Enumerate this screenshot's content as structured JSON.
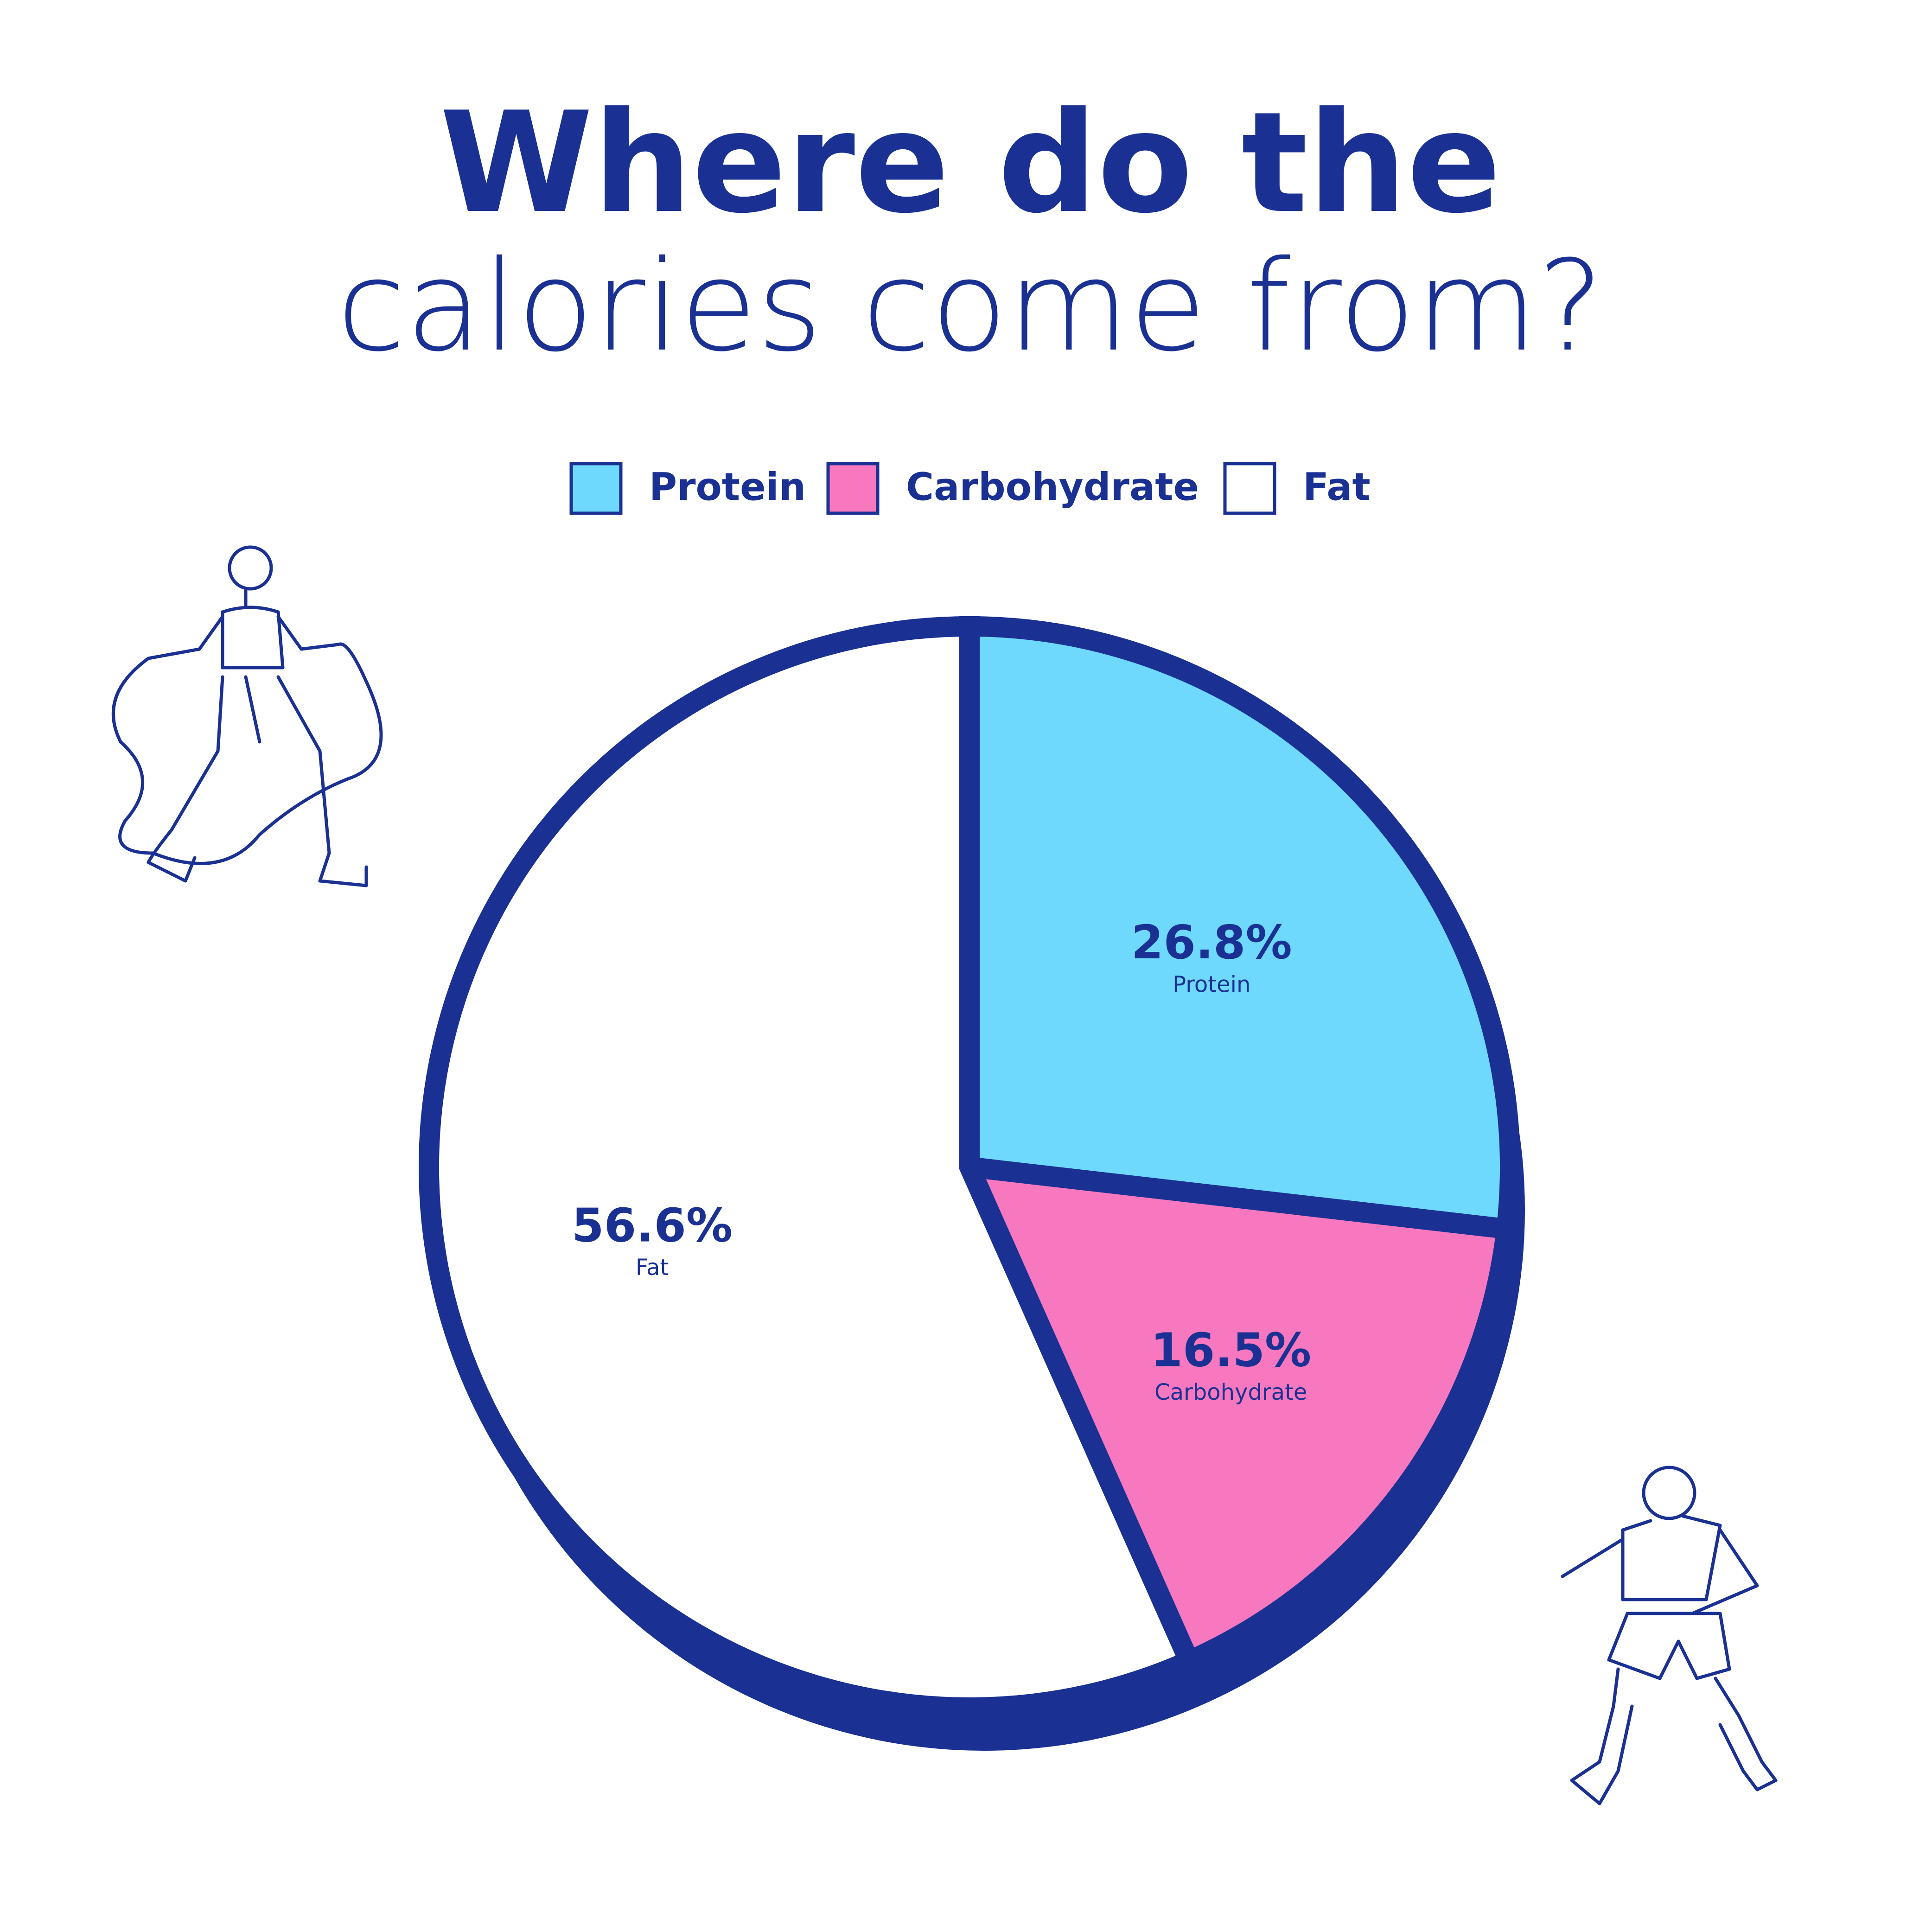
{
  "chart_data": {
    "type": "pie",
    "title": [
      "Where do the",
      "calories come from?"
    ],
    "categories": [
      "Protein",
      "Carbohydrate",
      "Fat"
    ],
    "values": [
      26.8,
      16.5,
      56.6
    ],
    "value_labels": [
      "26.8%",
      "16.5%",
      "56.6%"
    ],
    "colors": [
      "#6fd8fd",
      "#f778be",
      "#ffffff"
    ],
    "legend": "top"
  }
}
